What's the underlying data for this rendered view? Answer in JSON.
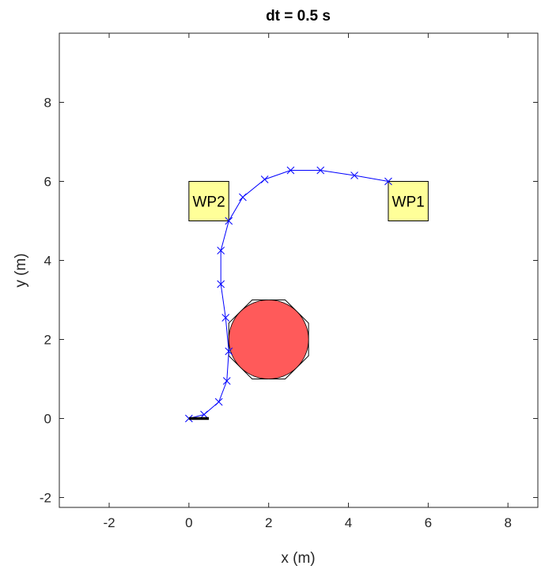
{
  "chart_data": {
    "type": "scatter",
    "title": "dt = 0.5 s",
    "xlabel": "x (m)",
    "ylabel": "y (m)",
    "xlim": [
      -3.25,
      8.75
    ],
    "ylim": [
      -2.25,
      9.75
    ],
    "xticks": [
      -2,
      0,
      2,
      4,
      6,
      8
    ],
    "yticks": [
      -2,
      0,
      2,
      4,
      6,
      8
    ],
    "xtick_labels": [
      "-2",
      "0",
      "2",
      "4",
      "6",
      "8"
    ],
    "ytick_labels": [
      "-2",
      "0",
      "2",
      "4",
      "6",
      "8"
    ],
    "grid": false,
    "trajectory": {
      "color": "#0000ff",
      "marker": "x",
      "x": [
        0.0,
        0.38,
        0.75,
        0.95,
        1.0,
        0.92,
        0.8,
        0.8,
        1.0,
        1.35,
        1.9,
        2.55,
        3.3,
        4.15,
        5.0
      ],
      "y": [
        0.0,
        0.1,
        0.42,
        0.95,
        1.7,
        2.55,
        3.4,
        4.25,
        5.0,
        5.6,
        6.05,
        6.28,
        6.28,
        6.15,
        6.0
      ]
    },
    "obstacle": {
      "center": [
        2.0,
        2.0
      ],
      "radius": 1.0,
      "fill_color": "#ff5a5a",
      "octagon_half_width": 1.0
    },
    "waypoints": [
      {
        "label": "WP1",
        "x": [
          5.0,
          6.0
        ],
        "y": [
          5.0,
          6.0
        ],
        "fill_color": "#ffff99"
      },
      {
        "label": "WP2",
        "x": [
          0.0,
          1.0
        ],
        "y": [
          5.0,
          6.0
        ],
        "fill_color": "#ffff99"
      }
    ],
    "heading_marker": {
      "x": [
        0.0,
        0.5
      ],
      "y": [
        0.0,
        0.0
      ],
      "color": "#000000"
    }
  }
}
